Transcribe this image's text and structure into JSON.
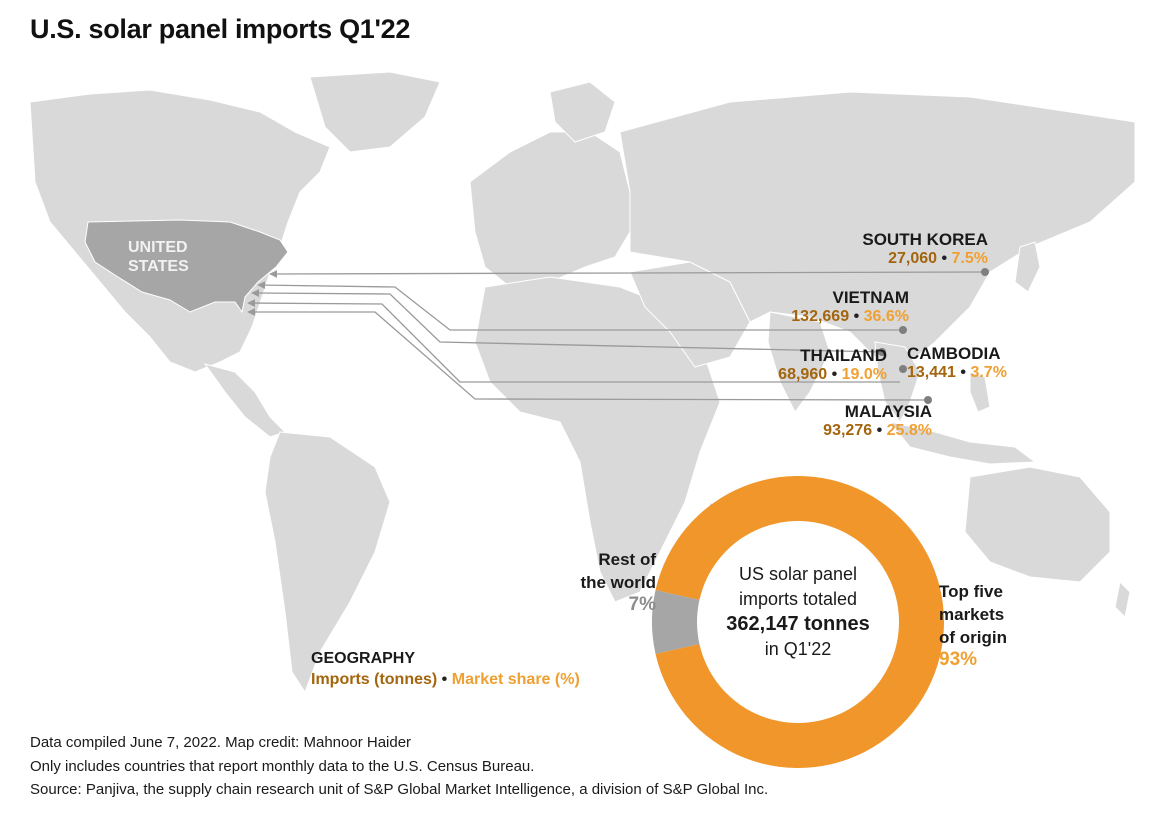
{
  "title": "U.S. solar panel imports Q1'22",
  "map": {
    "destination": {
      "line1": "UNITED",
      "line2": "STATES"
    },
    "origins": [
      {
        "name": "SOUTH KOREA",
        "imports": "27,060",
        "share": "7.5%"
      },
      {
        "name": "VIETNAM",
        "imports": "132,669",
        "share": "36.6%"
      },
      {
        "name": "THAILAND",
        "imports": "68,960",
        "share": "19.0%"
      },
      {
        "name": "CAMBODIA",
        "imports": "13,441",
        "share": "3.7%"
      },
      {
        "name": "MALAYSIA",
        "imports": "93,276",
        "share": "25.8%"
      }
    ],
    "separator": "•"
  },
  "donut": {
    "segments": [
      {
        "name": "Top five markets of origin",
        "value": 93,
        "color": "#f0962a"
      },
      {
        "name": "Rest of the world",
        "value": 7,
        "color": "#a6a6a6"
      }
    ],
    "center_line1": "US solar panel",
    "center_line2": "imports totaled",
    "center_value": "362,147 tonnes",
    "center_line4": "in Q1'22",
    "rest_label": {
      "line1": "Rest of",
      "line2": "the world",
      "pct": "7%"
    },
    "top_label": {
      "line1": "Top five",
      "line2": "markets",
      "line3": "of origin",
      "pct": "93%"
    }
  },
  "legend": {
    "heading": "GEOGRAPHY",
    "imports_label": "Imports (tonnes)",
    "share_label": "Market share (%)"
  },
  "colors": {
    "land": "#d9d9d9",
    "us": "#a6a6a6",
    "imports": "#a3650d",
    "share": "#f0a032",
    "donut_orange": "#f0962a",
    "donut_gray": "#a6a6a6"
  },
  "footer": [
    "Data compiled June 7, 2022. Map credit: Mahnoor Haider",
    "Only includes countries that report monthly data to the U.S. Census Bureau.",
    "Source: Panjiva, the supply chain research unit of S&P Global Market Intelligence, a division of S&P Global Inc."
  ]
}
